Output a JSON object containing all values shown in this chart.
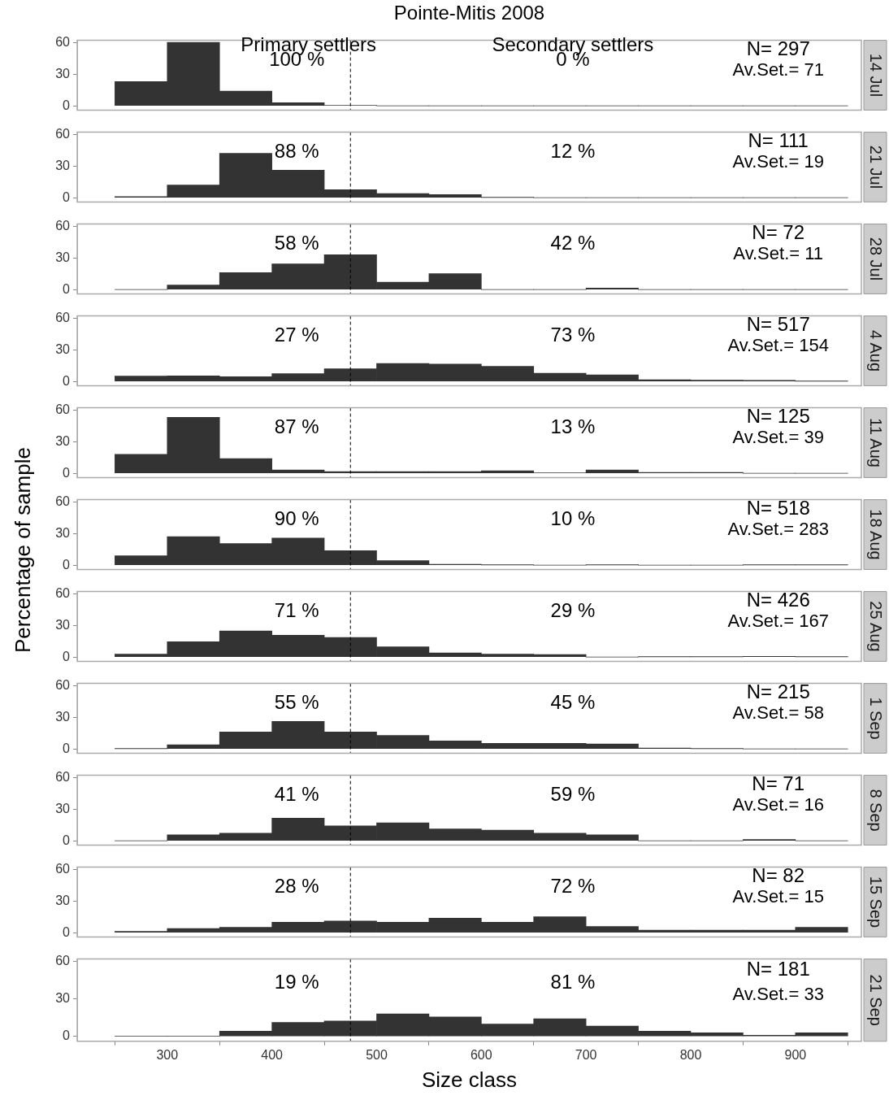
{
  "chart_data": [
    {
      "type": "histogram",
      "title": "Pointe-Mitis 2008",
      "subtitle": "14 Jul",
      "bins": [
        250,
        300,
        350,
        400,
        450,
        500,
        550,
        600,
        650,
        700,
        750,
        800,
        850,
        900,
        950
      ],
      "values": [
        23,
        60,
        14,
        3,
        0.5,
        0,
        0,
        0,
        0,
        0,
        0,
        0,
        0,
        0
      ],
      "color": "#333333",
      "xlim": [
        214,
        963
      ],
      "ylim": [
        -4,
        62
      ],
      "yticks": [
        0,
        30,
        60
      ],
      "tick_labels": "y",
      "grid": false,
      "ref_lines": [
        {
          "axis": "x",
          "value": 475,
          "line_style": "dashed",
          "color": "#000000"
        }
      ],
      "annotations": [
        "Primary settlers",
        "Secondary settlers",
        "100 %",
        "0 %",
        "N= 297",
        "Av.Set.= 71"
      ]
    },
    {
      "type": "histogram",
      "subtitle": "21 Jul",
      "bins": [
        250,
        300,
        350,
        400,
        450,
        500,
        550,
        600,
        650,
        700,
        750,
        800,
        850,
        900,
        950
      ],
      "values": [
        1,
        12,
        42,
        26,
        7.5,
        4,
        3,
        0.3,
        0,
        0,
        0,
        0,
        0,
        0
      ],
      "color": "#333333",
      "xlim": [
        214,
        963
      ],
      "ylim": [
        -4,
        62
      ],
      "yticks": [
        0,
        30,
        60
      ],
      "tick_labels": "y",
      "grid": false,
      "ref_lines": [
        {
          "axis": "x",
          "value": 475,
          "line_style": "dashed",
          "color": "#000000"
        }
      ],
      "annotations": [
        "88 %",
        "12 %",
        "N= 111",
        "Av.Set.= 19"
      ]
    },
    {
      "type": "histogram",
      "subtitle": "28 Jul",
      "bins": [
        250,
        300,
        350,
        400,
        450,
        500,
        550,
        600,
        650,
        700,
        750,
        800,
        850,
        900,
        950
      ],
      "values": [
        0,
        4.4,
        16,
        24.4,
        33,
        7,
        15,
        0,
        0,
        1.5,
        0,
        0,
        0,
        0
      ],
      "color": "#333333",
      "xlim": [
        214,
        963
      ],
      "ylim": [
        -4,
        62
      ],
      "yticks": [
        0,
        30,
        60
      ],
      "tick_labels": "y",
      "grid": false,
      "ref_lines": [
        {
          "axis": "x",
          "value": 475,
          "line_style": "dashed",
          "color": "#000000"
        }
      ],
      "annotations": [
        "58 %",
        "42 %",
        "N= 72",
        "Av.Set.= 11"
      ]
    },
    {
      "type": "histogram",
      "subtitle": "4 Aug",
      "bins": [
        250,
        300,
        350,
        400,
        450,
        500,
        550,
        600,
        650,
        700,
        750,
        800,
        850,
        900,
        950
      ],
      "values": [
        5,
        5.3,
        4.5,
        7.4,
        12,
        17,
        16.5,
        14.4,
        7.8,
        6.2,
        1.6,
        1.2,
        1,
        0.3
      ],
      "color": "#333333",
      "xlim": [
        214,
        963
      ],
      "ylim": [
        -4,
        62
      ],
      "yticks": [
        0,
        30,
        60
      ],
      "tick_labels": "y",
      "grid": false,
      "ref_lines": [
        {
          "axis": "x",
          "value": 475,
          "line_style": "dashed",
          "color": "#000000"
        }
      ],
      "annotations": [
        "27 %",
        "73 %",
        "N= 517",
        "Av.Set.= 154"
      ]
    },
    {
      "type": "histogram",
      "subtitle": "11 Aug",
      "bins": [
        250,
        300,
        350,
        400,
        450,
        500,
        550,
        600,
        650,
        700,
        750,
        800,
        850,
        900,
        950
      ],
      "values": [
        18,
        53,
        14,
        3.2,
        1.6,
        1.6,
        1.6,
        2.4,
        0.5,
        3.2,
        0.8,
        0.8,
        0,
        0
      ],
      "color": "#333333",
      "xlim": [
        214,
        963
      ],
      "ylim": [
        -4,
        62
      ],
      "yticks": [
        0,
        30,
        60
      ],
      "tick_labels": "y",
      "grid": false,
      "ref_lines": [
        {
          "axis": "x",
          "value": 475,
          "line_style": "dashed",
          "color": "#000000"
        }
      ],
      "annotations": [
        "87 %",
        "13 %",
        "N= 125",
        "Av.Set.= 39"
      ]
    },
    {
      "type": "histogram",
      "subtitle": "18 Aug",
      "ylabel": "Percentage of sample",
      "bins": [
        250,
        300,
        350,
        400,
        450,
        500,
        550,
        600,
        650,
        700,
        750,
        800,
        850,
        900,
        950
      ],
      "values": [
        9,
        27,
        20.5,
        25.7,
        13.8,
        4.3,
        0.8,
        0.3,
        0,
        0.3,
        0,
        0,
        0.3,
        0.3
      ],
      "color": "#333333",
      "xlim": [
        214,
        963
      ],
      "ylim": [
        -4,
        62
      ],
      "yticks": [
        0,
        30,
        60
      ],
      "tick_labels": "y",
      "grid": false,
      "ref_lines": [
        {
          "axis": "x",
          "value": 475,
          "line_style": "dashed",
          "color": "#000000"
        }
      ],
      "annotations": [
        "90 %",
        "10 %",
        "N= 518",
        "Av.Set.= 283"
      ]
    },
    {
      "type": "histogram",
      "subtitle": "25 Aug",
      "bins": [
        250,
        300,
        350,
        400,
        450,
        500,
        550,
        600,
        650,
        700,
        750,
        800,
        850,
        900,
        950
      ],
      "values": [
        2.8,
        14.6,
        24.7,
        20.6,
        18.6,
        9.7,
        4,
        2.8,
        2.4,
        0,
        0.3,
        0.3,
        0.6,
        0.3
      ],
      "color": "#333333",
      "xlim": [
        214,
        963
      ],
      "ylim": [
        -4,
        62
      ],
      "yticks": [
        0,
        30,
        60
      ],
      "tick_labels": "y",
      "grid": false,
      "ref_lines": [
        {
          "axis": "x",
          "value": 475,
          "line_style": "dashed",
          "color": "#000000"
        }
      ],
      "annotations": [
        "71 %",
        "29 %",
        "N= 426",
        "Av.Set.= 167"
      ]
    },
    {
      "type": "histogram",
      "subtitle": "1 Sep",
      "bins": [
        250,
        300,
        350,
        400,
        450,
        500,
        550,
        600,
        650,
        700,
        750,
        800,
        850,
        900,
        950
      ],
      "values": [
        0.3,
        4,
        16,
        26,
        16,
        12.8,
        7.6,
        5.2,
        5.2,
        4.8,
        0.8,
        0.3,
        0,
        0
      ],
      "color": "#333333",
      "xlim": [
        214,
        963
      ],
      "ylim": [
        -4,
        62
      ],
      "yticks": [
        0,
        30,
        60
      ],
      "tick_labels": "y",
      "grid": false,
      "ref_lines": [
        {
          "axis": "x",
          "value": 475,
          "line_style": "dashed",
          "color": "#000000"
        }
      ],
      "annotations": [
        "55 %",
        "45 %",
        "N= 215",
        "Av.Set.= 58"
      ]
    },
    {
      "type": "histogram",
      "subtitle": "8 Sep",
      "bins": [
        250,
        300,
        350,
        400,
        450,
        500,
        550,
        600,
        650,
        700,
        750,
        800,
        850,
        900,
        950
      ],
      "values": [
        0,
        5.7,
        7.3,
        21.5,
        14.2,
        17,
        11.3,
        10,
        7.3,
        5.7,
        0,
        0,
        1.2,
        0
      ],
      "color": "#333333",
      "xlim": [
        214,
        963
      ],
      "ylim": [
        -4,
        62
      ],
      "yticks": [
        0,
        30,
        60
      ],
      "tick_labels": "y",
      "grid": false,
      "ref_lines": [
        {
          "axis": "x",
          "value": 475,
          "line_style": "dashed",
          "color": "#000000"
        }
      ],
      "annotations": [
        "41 %",
        "59 %",
        "N= 71",
        "Av.Set.= 16"
      ]
    },
    {
      "type": "histogram",
      "subtitle": "15 Sep",
      "bins": [
        250,
        300,
        350,
        400,
        450,
        500,
        550,
        600,
        650,
        700,
        750,
        800,
        850,
        900,
        950
      ],
      "values": [
        1.2,
        4,
        5.1,
        9.9,
        11,
        9.9,
        13.8,
        9.9,
        15,
        5.9,
        2.4,
        2.4,
        2.4,
        5.1
      ],
      "color": "#333333",
      "xlim": [
        214,
        963
      ],
      "ylim": [
        -4,
        62
      ],
      "yticks": [
        0,
        30,
        60
      ],
      "tick_labels": "y",
      "grid": false,
      "ref_lines": [
        {
          "axis": "x",
          "value": 475,
          "line_style": "dashed",
          "color": "#000000"
        }
      ],
      "annotations": [
        "28 %",
        "72 %",
        "N= 82",
        "Av.Set.= 15"
      ]
    },
    {
      "type": "histogram",
      "subtitle": "21 Sep",
      "xlabel": "Size class",
      "bins": [
        250,
        300,
        350,
        400,
        450,
        500,
        550,
        600,
        650,
        700,
        750,
        800,
        850,
        900,
        950
      ],
      "values": [
        0,
        0,
        4.1,
        11.1,
        12.3,
        18,
        15.6,
        9.9,
        14,
        8.2,
        4.1,
        2.9,
        0.8,
        2.9
      ],
      "color": "#333333",
      "xlim": [
        214,
        963
      ],
      "ylim": [
        -4,
        62
      ],
      "yticks": [
        0,
        30,
        60
      ],
      "xticks": [
        300,
        400,
        500,
        600,
        700,
        800,
        900
      ],
      "grid": false,
      "ref_lines": [
        {
          "axis": "x",
          "value": 475,
          "line_style": "dashed",
          "color": "#000000"
        }
      ],
      "annotations": [
        "19 %",
        "81 %",
        "N= 181",
        "Av.Set.= 33"
      ]
    }
  ]
}
